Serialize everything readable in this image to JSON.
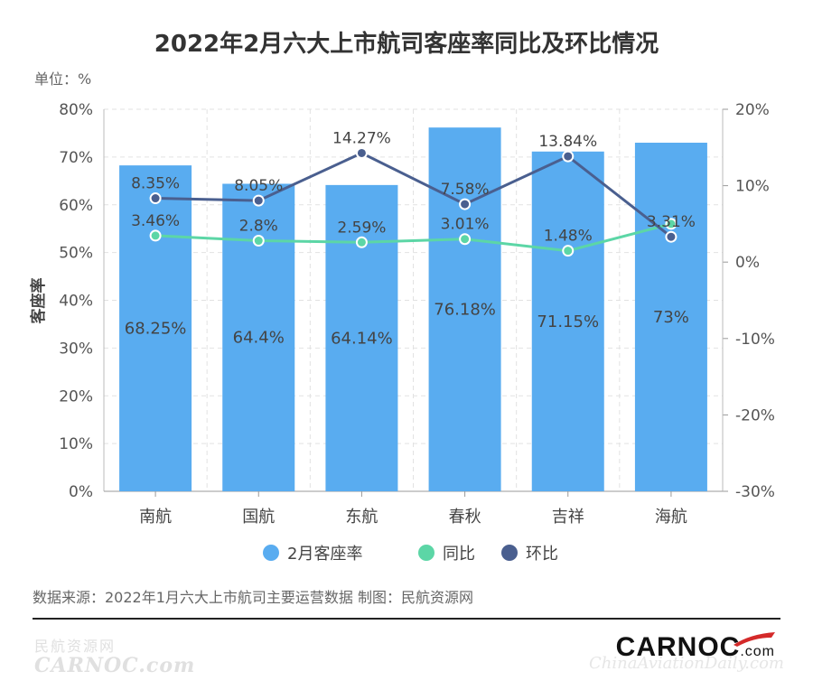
{
  "chart_data": {
    "type": "bar",
    "title": "2022年2月六大上市航司客座率同比及环比情况",
    "unit_label": "单位：%",
    "categories": [
      "南航",
      "国航",
      "东航",
      "春秋",
      "吉祥",
      "海航"
    ],
    "series": [
      {
        "name": "2月客座率",
        "type": "bar",
        "axis": "left",
        "color": "#59acf0",
        "values": [
          68.25,
          64.4,
          64.14,
          76.18,
          71.15,
          73
        ],
        "labels": [
          "68.25%",
          "64.4%",
          "64.14%",
          "76.18%",
          "71.15%",
          "73%"
        ]
      },
      {
        "name": "同比",
        "type": "line",
        "axis": "right",
        "color": "#5cd6a6",
        "values": [
          3.46,
          2.8,
          2.59,
          3.01,
          1.48,
          5.0
        ],
        "labels": [
          "3.46%",
          "2.8%",
          "2.59%",
          "3.01%",
          "1.48%",
          ""
        ]
      },
      {
        "name": "环比",
        "type": "line",
        "axis": "right",
        "color": "#4a5f8f",
        "values": [
          8.35,
          8.05,
          14.27,
          7.58,
          13.84,
          3.31
        ],
        "labels": [
          "8.35%",
          "8.05%",
          "14.27%",
          "7.58%",
          "13.84%",
          "3.31%"
        ]
      }
    ],
    "left_axis": {
      "label": "客座率",
      "min": 0,
      "max": 80,
      "ticks": [
        "0%",
        "10%",
        "20%",
        "30%",
        "40%",
        "50%",
        "60%",
        "70%",
        "80%"
      ]
    },
    "right_axis": {
      "min": -30,
      "max": 20,
      "ticks": [
        "-30%",
        "-20%",
        "-10%",
        "0%",
        "10%",
        "20%"
      ]
    },
    "grid": true,
    "legend_position": "bottom"
  },
  "footer": {
    "source": "数据来源：2022年1月六大上市航司主要运营数据  制图：民航资源网",
    "watermark_cn": "民航资源网",
    "watermark_en": "CARNOC.com",
    "brand_logo": "CARNOC",
    "brand_logo_suffix": ".com",
    "watermark_right": "ChinaAviationDaily.com"
  },
  "colors": {
    "title": "#333333",
    "axis_text": "#555555",
    "grid": "#e2e2e2"
  }
}
